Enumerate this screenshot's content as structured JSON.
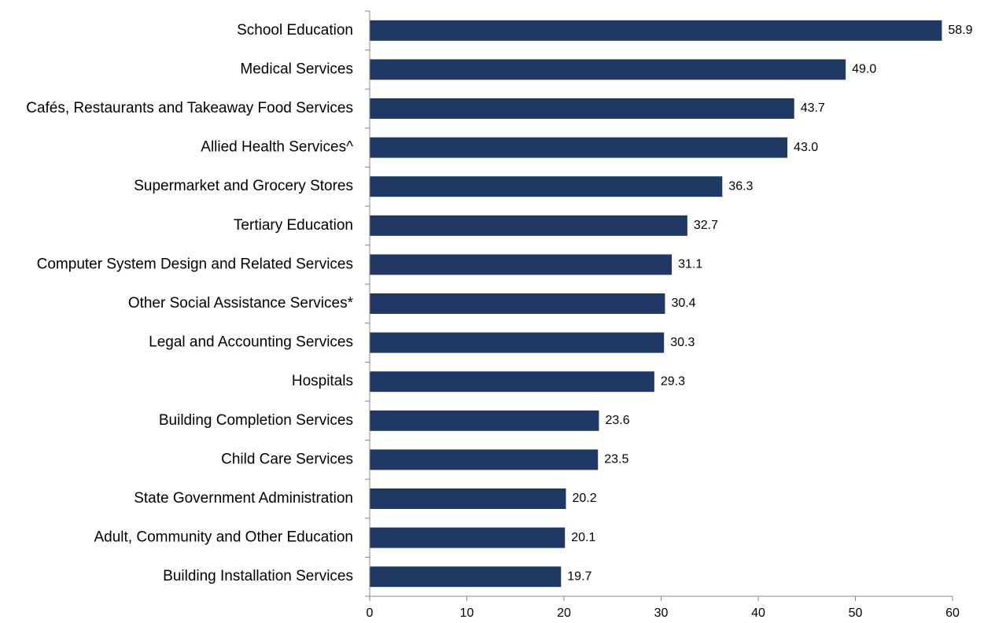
{
  "chart_data": {
    "type": "bar",
    "orientation": "horizontal",
    "categories": [
      "School Education",
      "Medical Services",
      "Cafés, Restaurants and Takeaway Food Services",
      "Allied Health Services^",
      "Supermarket and Grocery Stores",
      "Tertiary Education",
      "Computer System Design and Related Services",
      "Other Social Assistance Services*",
      "Legal and Accounting Services",
      "Hospitals",
      "Building Completion Services",
      "Child Care Services",
      "State Government Administration",
      "Adult, Community and Other Education",
      "Building Installation Services"
    ],
    "values": [
      58.9,
      49.0,
      43.7,
      43.0,
      36.3,
      32.7,
      31.1,
      30.4,
      30.3,
      29.3,
      23.6,
      23.5,
      20.2,
      20.1,
      19.7
    ],
    "value_labels": [
      "58.9",
      "49.0",
      "43.7",
      "43.0",
      "36.3",
      "32.7",
      "31.1",
      "30.4",
      "30.3",
      "29.3",
      "23.6",
      "23.5",
      "20.2",
      "20.1",
      "19.7"
    ],
    "x_ticks": [
      "0",
      "10",
      "20",
      "30",
      "40",
      "50",
      "60"
    ],
    "xlim": [
      0,
      60
    ],
    "grid": false,
    "legend": "none",
    "bar_color": "#1F3864",
    "axis_color": "#888888"
  }
}
